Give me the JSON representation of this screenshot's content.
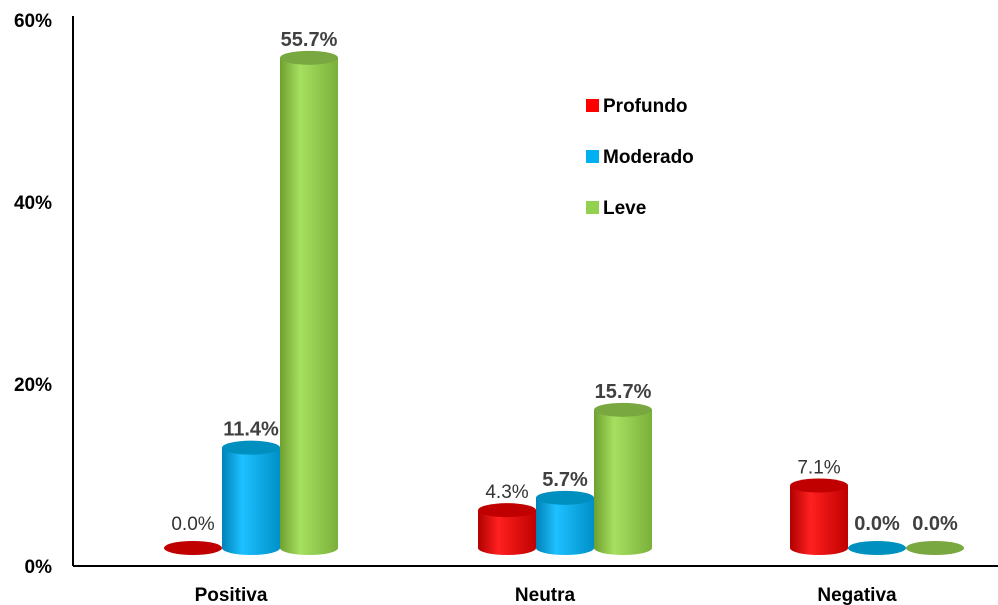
{
  "chart_data": {
    "type": "bar",
    "style": "3d-cylinder",
    "categories": [
      "Positiva",
      "Neutra",
      "Negativa"
    ],
    "series": [
      {
        "name": "Profundo",
        "color": "#ff0000",
        "values": [
          0.0,
          4.3,
          7.1
        ],
        "labels": [
          "0.0%",
          "4.3%",
          "7.1%"
        ],
        "label_bold": [
          false,
          false,
          false
        ]
      },
      {
        "name": "Moderado",
        "color": "#00b0f0",
        "values": [
          11.4,
          5.7,
          0.0
        ],
        "labels": [
          "11.4%",
          "5.7%",
          "0.0%"
        ],
        "label_bold": [
          true,
          true,
          true
        ]
      },
      {
        "name": "Leve",
        "color": "#92d050",
        "values": [
          55.7,
          15.7,
          0.0
        ],
        "labels": [
          "55.7%",
          "15.7%",
          "0.0%"
        ],
        "label_bold": [
          true,
          true,
          true
        ]
      }
    ],
    "y_ticks": [
      "0%",
      "20%",
      "40%",
      "60%"
    ],
    "y_tick_values": [
      0,
      20,
      40,
      60
    ],
    "ylim": [
      0,
      60
    ],
    "legend_position": "upper-middle",
    "grid": false
  }
}
